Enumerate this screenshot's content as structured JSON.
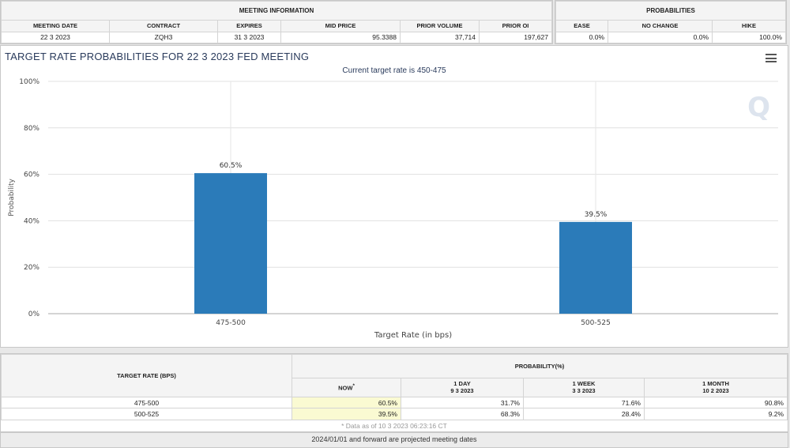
{
  "meeting_info": {
    "section_title": "MEETING INFORMATION",
    "headers": [
      "MEETING DATE",
      "CONTRACT",
      "EXPIRES",
      "MID PRICE",
      "PRIOR VOLUME",
      "PRIOR OI"
    ],
    "row": [
      "22 3 2023",
      "ZQH3",
      "31 3 2023",
      "95.3388",
      "37,714",
      "197,627"
    ]
  },
  "probabilities": {
    "section_title": "PROBABILITIES",
    "headers": [
      "EASE",
      "NO CHANGE",
      "HIKE"
    ],
    "row": [
      "0.0%",
      "0.0%",
      "100.0%"
    ]
  },
  "chart": {
    "title": "TARGET RATE PROBABILITIES FOR 22 3 2023 FED MEETING",
    "subtitle": "Current target rate is 450-475",
    "menu_icon": "hamburger-menu-icon",
    "logo_letter": "Q"
  },
  "chart_data": {
    "type": "bar",
    "categories": [
      "475-500",
      "500-525"
    ],
    "values": [
      60.5,
      39.5
    ],
    "value_labels": [
      "60.5%",
      "39.5%"
    ],
    "xlabel": "Target Rate (in bps)",
    "ylabel": "Probability",
    "ylim": [
      0,
      100
    ],
    "yticks": [
      "0%",
      "20%",
      "40%",
      "60%",
      "80%",
      "100%"
    ],
    "grid": true,
    "bar_color": "#2b7bb9"
  },
  "bottom_table": {
    "col_target": "TARGET RATE (BPS)",
    "col_prob": "PROBABILITY(%)",
    "sub_headers": [
      {
        "line1": "NOW",
        "line2": "*"
      },
      {
        "line1": "1 DAY",
        "line2": "9 3 2023"
      },
      {
        "line1": "1 WEEK",
        "line2": "3 3 2023"
      },
      {
        "line1": "1 MONTH",
        "line2": "10 2 2023"
      }
    ],
    "rows": [
      {
        "rate": "475-500",
        "values": [
          "60.5%",
          "31.7%",
          "71.6%",
          "90.8%"
        ]
      },
      {
        "rate": "500-525",
        "values": [
          "39.5%",
          "68.3%",
          "28.4%",
          "9.2%"
        ]
      }
    ],
    "note": "* Data as of 10 3 2023 06:23:16 CT"
  },
  "footer": "2024/01/01 and forward are projected meeting dates"
}
